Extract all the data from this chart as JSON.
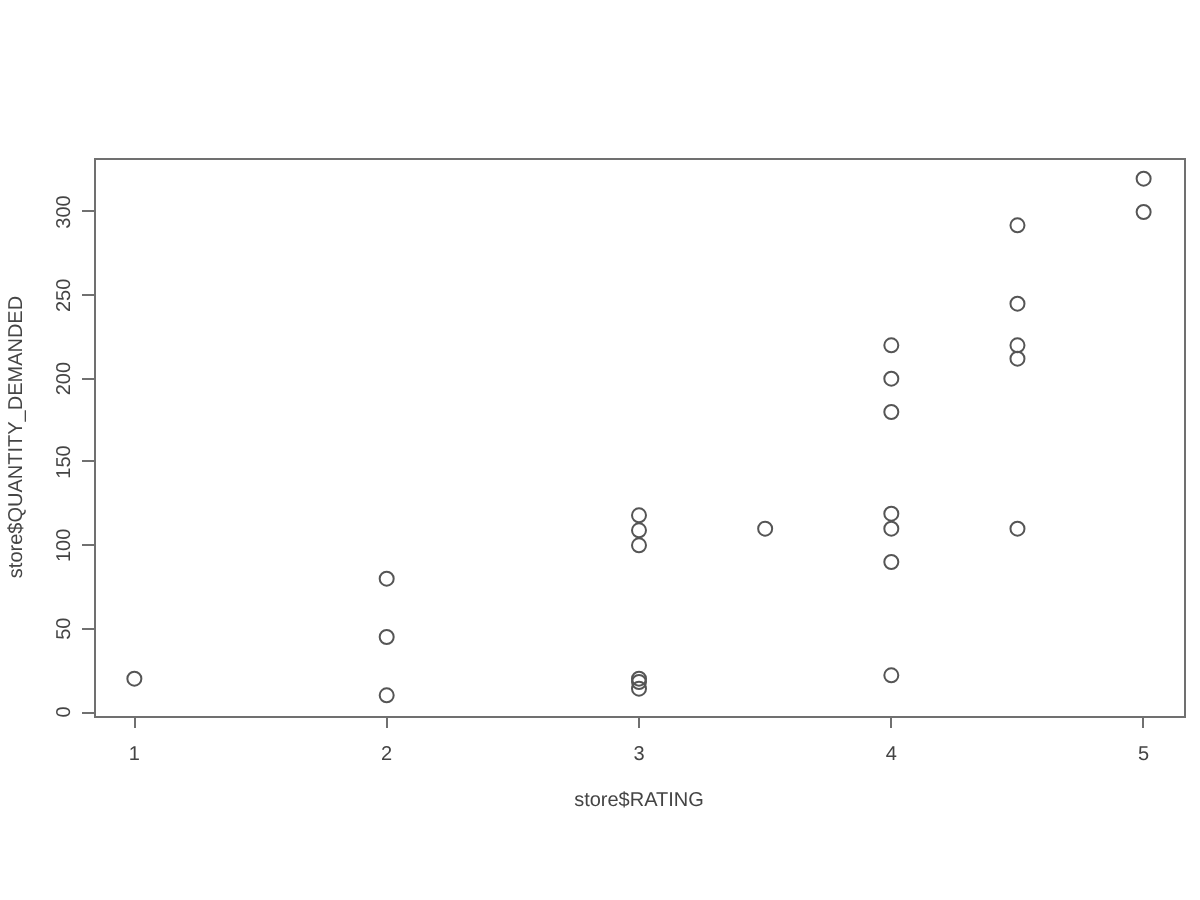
{
  "chart_data": {
    "type": "scatter",
    "xlabel": "store$RATING",
    "ylabel": "store$QUANTITY_DEMANDED",
    "x": [
      1,
      2,
      2,
      2,
      3,
      3,
      3,
      3,
      3,
      3,
      3.5,
      4,
      4,
      4,
      4,
      4,
      4,
      4,
      4.5,
      4.5,
      4.5,
      4.5,
      4.5,
      5,
      5
    ],
    "values": [
      20,
      80,
      45,
      10,
      118,
      109,
      100,
      20,
      18,
      14,
      110,
      220,
      200,
      180,
      119,
      110,
      90,
      22,
      292,
      245,
      220,
      212,
      110,
      320,
      300
    ],
    "color": "#555555",
    "marker": "circle",
    "xlim": [
      0.84,
      5.16
    ],
    "ylim": [
      -2.4,
      332.4
    ],
    "xticks": [
      1,
      2,
      3,
      4,
      5
    ],
    "yticks": [
      0,
      50,
      100,
      150,
      200,
      250,
      300
    ],
    "grid": false,
    "legend": false
  }
}
